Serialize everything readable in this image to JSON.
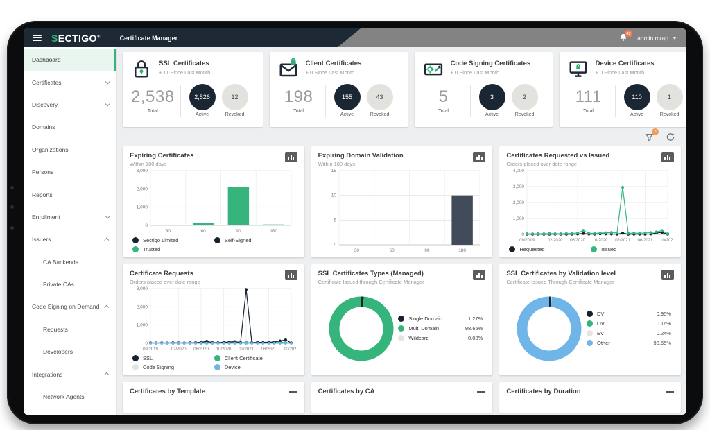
{
  "header": {
    "brand_first": "S",
    "brand_rest": "ECTIGO",
    "brand_reg": "®",
    "app_title": "Certificate Manager",
    "notification_count": "42",
    "user": "admin mrap"
  },
  "toolbar": {
    "filter_badge": "3"
  },
  "colors": {
    "navy": "#16222e",
    "slate": "#414b59",
    "green": "#35b57c",
    "lightgray": "#e4e4e1",
    "blue": "#6fb5e8",
    "accent_green": "#2eb274",
    "badge_orange": "#ee7a58"
  },
  "sidebar": {
    "items": [
      {
        "label": "Dashboard",
        "active": true
      },
      {
        "label": "Certificates",
        "chevron": "down"
      },
      {
        "label": "Discovery",
        "chevron": "down"
      },
      {
        "label": "Domains"
      },
      {
        "label": "Organizations"
      },
      {
        "label": "Persons"
      },
      {
        "label": "Reports"
      },
      {
        "label": "Enrollment",
        "chevron": "down"
      },
      {
        "label": "Issuers",
        "chevron": "up"
      },
      {
        "label": "CA Backends",
        "child": true
      },
      {
        "label": "Private CAs",
        "child": true
      },
      {
        "label": "Code Signing on Demand",
        "chevron": "up"
      },
      {
        "label": "Requests",
        "child": true
      },
      {
        "label": "Developers",
        "child": true
      },
      {
        "label": "Integrations",
        "chevron": "up"
      },
      {
        "label": "Network Agents",
        "child": true
      }
    ]
  },
  "stats": [
    {
      "icon": "ssl-lock-icon",
      "title": "SSL Certificates",
      "delta": "+ 11 Since Last Month",
      "total": "2,538",
      "total_label": "Total",
      "active": "2,526",
      "active_label": "Active",
      "revoked": "12",
      "revoked_label": "Revoked"
    },
    {
      "icon": "client-mail-icon",
      "title": "Client Certificates",
      "delta": "+ 0 Since Last Month",
      "total": "198",
      "total_label": "Total",
      "active": "155",
      "active_label": "Active",
      "revoked": "43",
      "revoked_label": "Revoked"
    },
    {
      "icon": "code-signing-icon",
      "title": "Code Signing Certificates",
      "delta": "+ 0 Since Last Month",
      "total": "5",
      "total_label": "Total",
      "active": "3",
      "active_label": "Active",
      "revoked": "2",
      "revoked_label": "Revoked"
    },
    {
      "icon": "device-monitor-icon",
      "title": "Device Certificates",
      "delta": "+ 0 Since Last Month",
      "total": "111",
      "total_label": "Total",
      "active": "110",
      "active_label": "Active",
      "revoked": "1",
      "revoked_label": "Revoked"
    }
  ],
  "chart_data": [
    {
      "id": "expiring-certificates",
      "type": "bar",
      "title": "Expiring Certificates",
      "subtitle": "Within 180 days",
      "categories": [
        "30",
        "60",
        "90",
        "180"
      ],
      "yticks": [
        0,
        1000,
        2000,
        3000
      ],
      "ylim": [
        0,
        3000
      ],
      "series": [
        {
          "name": "Trusted",
          "color_key": "green",
          "values": [
            20,
            150,
            2100,
            50
          ]
        }
      ],
      "legend": [
        {
          "label": "Sectigo Limited",
          "color_key": "navy"
        },
        {
          "label": "Self-Signed",
          "color_key": "navy"
        },
        {
          "label": "Trusted",
          "color_key": "green"
        }
      ]
    },
    {
      "id": "expiring-domain-validation",
      "type": "bar",
      "title": "Expiring Domain Validation",
      "subtitle": "Within 180 days",
      "categories": [
        "30",
        "60",
        "90",
        "180"
      ],
      "yticks": [
        0,
        5,
        10,
        15
      ],
      "ylim": [
        0,
        15
      ],
      "series": [
        {
          "name": "Domains",
          "color_key": "slate",
          "values": [
            0,
            0,
            0,
            10
          ]
        }
      ],
      "legend": []
    },
    {
      "id": "certificates-requested-vs-issued",
      "type": "line",
      "title": "Certificates Requested vs Issued",
      "subtitle": "Orders placed over date range",
      "x_labels": [
        "09/2019",
        "02/2020",
        "06/2020",
        "10/2020",
        "02/2021",
        "06/2021",
        "10/2021"
      ],
      "x_label_idx": [
        0,
        5,
        9,
        13,
        17,
        21,
        25
      ],
      "n_points": 26,
      "yticks": [
        0,
        1000,
        2000,
        3000,
        4000
      ],
      "ylim": [
        0,
        4000
      ],
      "series": [
        {
          "name": "Requested",
          "color_key": "navy",
          "values": [
            15,
            12,
            14,
            12,
            15,
            18,
            14,
            12,
            15,
            25,
            60,
            20,
            15,
            40,
            30,
            25,
            15,
            80,
            12,
            18,
            15,
            14,
            25,
            90,
            120,
            15
          ]
        },
        {
          "name": "Issued",
          "color_key": "green",
          "values": [
            40,
            35,
            45,
            40,
            50,
            45,
            40,
            55,
            60,
            90,
            250,
            70,
            60,
            80,
            100,
            120,
            90,
            2950,
            60,
            80,
            70,
            90,
            110,
            160,
            240,
            40
          ]
        }
      ],
      "legend": [
        {
          "label": "Requested",
          "color_key": "navy"
        },
        {
          "label": "Issued",
          "color_key": "green"
        }
      ]
    },
    {
      "id": "certificate-requests",
      "type": "line",
      "title": "Certificate Requests",
      "subtitle": "Orders placed over date range",
      "x_labels": [
        "09/2019",
        "02/2020",
        "06/2020",
        "10/2020",
        "02/2021",
        "06/2021",
        "10/2021"
      ],
      "x_label_idx": [
        0,
        5,
        9,
        13,
        17,
        21,
        25
      ],
      "n_points": 26,
      "yticks": [
        0,
        1000,
        2000,
        3000
      ],
      "ylim": [
        0,
        3000
      ],
      "series": [
        {
          "name": "Code Signing",
          "color_key": "lightgray",
          "values": [
            5,
            5,
            5,
            5,
            5,
            5,
            5,
            5,
            5,
            5,
            5,
            5,
            5,
            5,
            5,
            5,
            5,
            5,
            5,
            5,
            5,
            5,
            5,
            5,
            5,
            5
          ]
        },
        {
          "name": "Client Certificate",
          "color_key": "green",
          "values": [
            12,
            10,
            12,
            10,
            15,
            12,
            10,
            15,
            18,
            30,
            60,
            20,
            15,
            25,
            30,
            40,
            25,
            60,
            15,
            25,
            20,
            25,
            30,
            60,
            45,
            12
          ]
        },
        {
          "name": "SSL",
          "color_key": "navy",
          "values": [
            25,
            20,
            25,
            20,
            30,
            25,
            20,
            30,
            35,
            60,
            110,
            40,
            35,
            60,
            70,
            90,
            50,
            2950,
            35,
            55,
            50,
            60,
            70,
            130,
            190,
            25
          ]
        },
        {
          "name": "Device",
          "color_key": "blue",
          "values": [
            5,
            5,
            5,
            5,
            5,
            5,
            5,
            5,
            5,
            5,
            5,
            5,
            5,
            5,
            5,
            5,
            5,
            5,
            5,
            5,
            5,
            5,
            5,
            5,
            5,
            5
          ]
        }
      ],
      "legend": [
        {
          "label": "SSL",
          "color_key": "navy"
        },
        {
          "label": "Client Certificate",
          "color_key": "green"
        },
        {
          "label": "Code Signing",
          "color_key": "lightgray"
        },
        {
          "label": "Device",
          "color_key": "blue"
        }
      ]
    },
    {
      "id": "ssl-certificates-types-managed",
      "type": "donut",
      "title": "SSL Certificates Types (Managed)",
      "subtitle": "Certificate Issued through Certificate Manager",
      "slices": [
        {
          "label": "Single Domain",
          "value": 1.27,
          "display": "1.27%",
          "color_key": "navy"
        },
        {
          "label": "Multi Domain",
          "value": 98.65,
          "display": "98.65%",
          "color_key": "green"
        },
        {
          "label": "Wildcard",
          "value": 0.08,
          "display": "0.08%",
          "color_key": "lightgray"
        }
      ]
    },
    {
      "id": "ssl-certificates-by-validation-level",
      "type": "donut",
      "title": "SSL Certificates by Validation level",
      "subtitle": "Certificate Issued Through Certificate Manager",
      "slices": [
        {
          "label": "DV",
          "value": 0.95,
          "display": "0.95%",
          "color_key": "navy"
        },
        {
          "label": "OV",
          "value": 0.16,
          "display": "0.16%",
          "color_key": "green"
        },
        {
          "label": "EV",
          "value": 0.24,
          "display": "0.24%",
          "color_key": "lightgray"
        },
        {
          "label": "Other",
          "value": 98.65,
          "display": "98.65%",
          "color_key": "blue"
        }
      ]
    },
    {
      "id": "certificates-by-template",
      "type": "stub",
      "title": "Certificates by Template"
    },
    {
      "id": "certificates-by-ca",
      "type": "stub",
      "title": "Certificates by CA"
    },
    {
      "id": "certificates-by-duration",
      "type": "stub",
      "title": "Certificates by Duration"
    }
  ]
}
